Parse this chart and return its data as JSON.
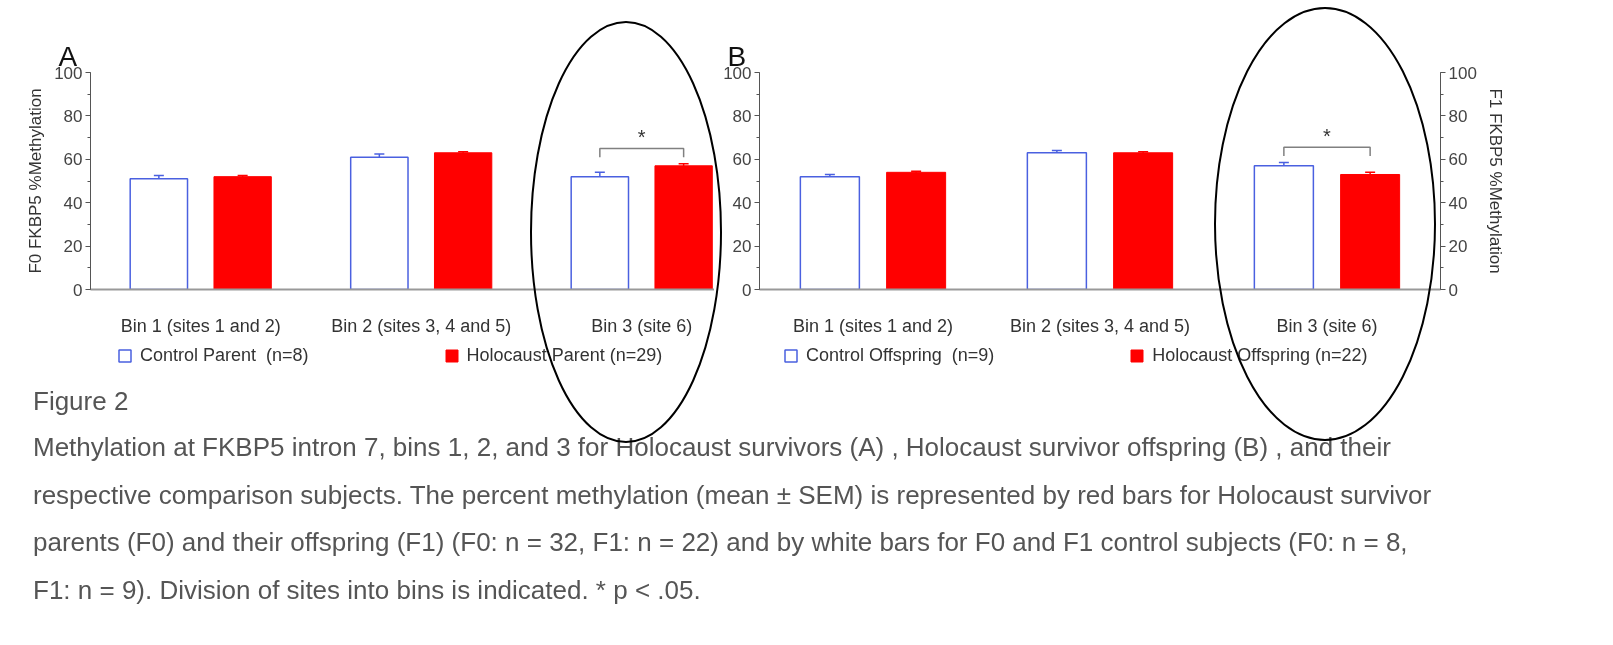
{
  "chart_data": [
    {
      "type": "bar",
      "title": "A",
      "ylabel": "F0 FKBP5 %Methylation",
      "categories": [
        "Bin 1 (sites 1 and 2)",
        "Bin 2 (sites 3, 4 and 5)",
        "Bin 3 (site 6)"
      ],
      "series": [
        {
          "name": "Control Parent  (n=8)",
          "color": "#4a60e0",
          "values": [
            51,
            61,
            52
          ],
          "errors": [
            1.5,
            1.5,
            2
          ]
        },
        {
          "name": "Holocaust Parent (n=29)",
          "color": "#ff0000",
          "values": [
            52,
            63,
            57
          ],
          "errors": [
            0.5,
            0.5,
            1
          ]
        }
      ],
      "ylim": [
        0,
        100
      ],
      "yticks": [
        0,
        20,
        40,
        60,
        80,
        100
      ],
      "grid": false,
      "legend": "bottom",
      "annotations": [
        "*"
      ]
    },
    {
      "type": "bar",
      "title": "B",
      "y2label": "F1 FKBP5 %Methylation",
      "categories": [
        "Bin 1 (sites 1 and 2)",
        "Bin 2 (sites 3, 4 and 5)",
        "Bin 3 (site 6)"
      ],
      "series": [
        {
          "name": "Control Offspring  (n=9)",
          "color": "#4a60e0",
          "values": [
            52,
            63,
            57
          ],
          "errors": [
            1,
            1,
            1.5
          ]
        },
        {
          "name": "Holocaust Offspring (n=22)",
          "color": "#ff0000",
          "values": [
            54,
            63,
            53
          ],
          "errors": [
            0.5,
            0.5,
            1
          ]
        }
      ],
      "ylim": [
        0,
        100
      ],
      "yticks": [
        0,
        20,
        40,
        60,
        80,
        100
      ],
      "y2lim": [
        0,
        100
      ],
      "y2ticks": [
        0,
        20,
        40,
        60,
        80,
        100
      ],
      "grid": false,
      "legend": "bottom",
      "annotations": [
        "*"
      ]
    },
    {
      "type": "other",
      "title": "Figure 2",
      "annotations": [
        "Methylation at FKBP5 intron 7, bins 1, 2, and 3 for Holocaust survivors (A) , Holocaust survivor offspring (B) , and their respective comparison subjects. The percent methylation (mean ± SEM) is represented by red bars for Holocaust survivor parents (F0) and their offspring (F1) (F0: n = 32, F1: n = 22) and by white bars for F0 and F1 control subjects (F0: n = 8, F1: n = 9). Division of sites into bins is indicated. *  p < .05."
      ]
    }
  ]
}
